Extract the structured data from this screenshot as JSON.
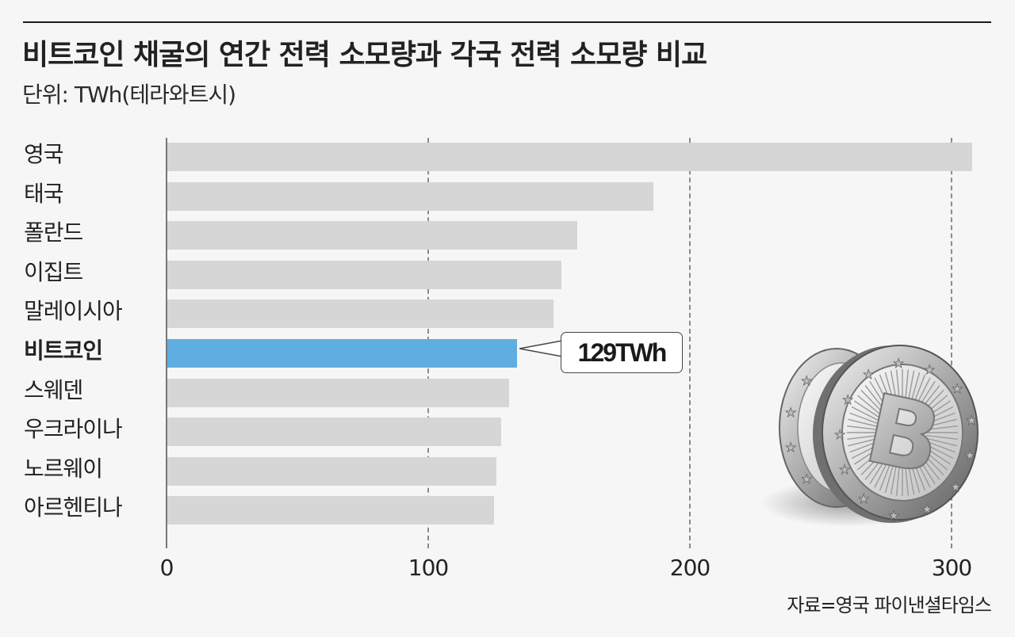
{
  "header": {
    "title": "비트코인 채굴의 연간 전력 소모량과 각국 전력 소모량 비교",
    "subtitle": "단위: TWh(테라와트시)"
  },
  "source": "자료=영국 파이낸셜타임스",
  "callout": {
    "label": "129TWh",
    "target": "비트코인"
  },
  "colors": {
    "background": "#f6f6f6",
    "bar": "#d6d6d6",
    "highlight_bar": "#5eaee1",
    "text": "#222222"
  },
  "axis": {
    "ticks": [
      {
        "label": "0",
        "value": 0
      },
      {
        "label": "100",
        "value": 100
      },
      {
        "label": "200",
        "value": 200
      },
      {
        "label": "300",
        "value": 300
      }
    ]
  },
  "illustration": {
    "icon": "bitcoin-coins-icon"
  },
  "chart_data": {
    "type": "bar",
    "orientation": "horizontal",
    "title": "비트코인 채굴의 연간 전력 소모량과 각국 전력 소모량 비교",
    "subtitle": "단위: TWh(테라와트시)",
    "xlabel": "",
    "ylabel": "",
    "xlim": [
      0,
      310
    ],
    "x_ticks": [
      0,
      100,
      200,
      300
    ],
    "grid": "vertical dashed at 100, 200, 300",
    "legend": "none",
    "categories": [
      "영국",
      "태국",
      "폴란드",
      "이집트",
      "말레이시아",
      "비트코인",
      "스웨덴",
      "우크라이나",
      "노르웨이",
      "아르헨티나"
    ],
    "values": [
      308,
      186,
      157,
      151,
      148,
      129,
      131,
      128,
      126,
      125
    ],
    "highlight": "비트코인",
    "annotations": [
      {
        "category": "비트코인",
        "text": "129TWh"
      }
    ],
    "source": "자료=영국 파이낸셜타임스"
  }
}
